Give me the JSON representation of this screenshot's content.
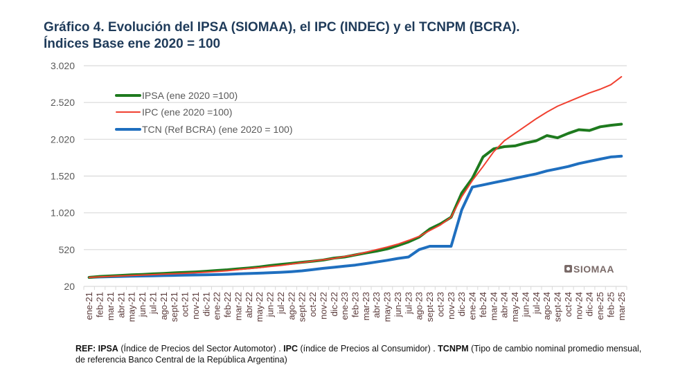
{
  "title_line1": "Gráfico 4. Evolución del IPSA (SIOMAA), el IPC (INDEC) y el TCNPM (BCRA).",
  "title_line2": "Índices Base ene 2020 = 100",
  "logo": "SIOMAA",
  "footnote": {
    "ref_label": "REF:",
    "ipsa_abbr": "IPSA",
    "ipsa_desc": " (Índice de Precios del Sector Automotor)  .  ",
    "ipc_abbr": "IPC",
    "ipc_desc": " (índice de Precios al Consumidor)  .  ",
    "tcnpm_abbr": "TCNPM",
    "tcnpm_desc": " (Tipo de cambio nominal promedio mensual, de referencia Banco Central de la República Argentina)"
  },
  "chart_data": {
    "type": "line",
    "title": "Gráfico 4. Evolución del IPSA (SIOMAA), el IPC (INDEC) y el TCNPM (BCRA). Índices Base ene 2020 = 100",
    "xlabel": "",
    "ylabel": "",
    "ylim": [
      20,
      3020
    ],
    "yticks": [
      20,
      520,
      1020,
      1520,
      2020,
      2520,
      3020
    ],
    "ytick_labels": [
      "20",
      "520",
      "1.020",
      "1.520",
      "2.020",
      "2.520",
      "3.020"
    ],
    "grid": true,
    "legend_position": "top-left",
    "categories": [
      "ene-21",
      "feb-21",
      "mar-21",
      "abr-21",
      "may-21",
      "jun-21",
      "jul-21",
      "ago-21",
      "sept-21",
      "oct-21",
      "nov-21",
      "dic-21",
      "ene-22",
      "feb-22",
      "mar-22",
      "abr-22",
      "may-22",
      "jun-22",
      "jul-22",
      "ago-22",
      "sept-22",
      "oct-22",
      "nov-22",
      "dic-22",
      "ene-23",
      "feb-23",
      "mar-23",
      "abr-23",
      "may-23",
      "jun-23",
      "jul-23",
      "ago-23",
      "sept-23",
      "oct-23",
      "nov-23",
      "dic-23",
      "ene-24",
      "feb-24",
      "mar-24",
      "abr-24",
      "may-24",
      "jun-24",
      "jul-24",
      "ago-24",
      "sept-24",
      "oct-24",
      "nov-24",
      "dic-24",
      "ene-25",
      "feb-25",
      "mar-25"
    ],
    "series": [
      {
        "name": "IPSA (ene 2020 =100)",
        "color": "#1e7a1e",
        "values": [
          142,
          155,
          162,
          170,
          177,
          183,
          190,
          197,
          204,
          210,
          217,
          226,
          236,
          246,
          259,
          270,
          284,
          303,
          318,
          333,
          348,
          362,
          378,
          405,
          420,
          448,
          475,
          500,
          530,
          575,
          625,
          690,
          800,
          870,
          960,
          1290,
          1490,
          1780,
          1890,
          1920,
          1930,
          1970,
          2000,
          2070,
          2040,
          2100,
          2150,
          2140,
          2190,
          2210,
          2225
        ]
      },
      {
        "name": "IPC (ene 2020 =100)",
        "color": "#f04030",
        "values": [
          142,
          149,
          156,
          162,
          168,
          174,
          180,
          186,
          192,
          198,
          205,
          213,
          222,
          233,
          248,
          262,
          275,
          290,
          305,
          324,
          344,
          363,
          382,
          400,
          425,
          450,
          485,
          520,
          555,
          595,
          645,
          700,
          780,
          855,
          960,
          1240,
          1460,
          1650,
          1850,
          2000,
          2100,
          2200,
          2300,
          2390,
          2470,
          2530,
          2590,
          2650,
          2700,
          2760,
          2870
        ]
      },
      {
        "name": "TCN (Ref BCRA) (ene 2020 = 100)",
        "color": "#1f6fbf",
        "values": [
          142,
          148,
          152,
          155,
          158,
          161,
          164,
          167,
          170,
          172,
          175,
          178,
          181,
          185,
          190,
          195,
          200,
          205,
          212,
          220,
          232,
          248,
          265,
          280,
          295,
          310,
          330,
          352,
          375,
          400,
          420,
          520,
          565,
          565,
          565,
          1060,
          1370,
          1400,
          1430,
          1460,
          1490,
          1520,
          1550,
          1590,
          1620,
          1650,
          1690,
          1720,
          1750,
          1780,
          1790
        ]
      }
    ]
  }
}
